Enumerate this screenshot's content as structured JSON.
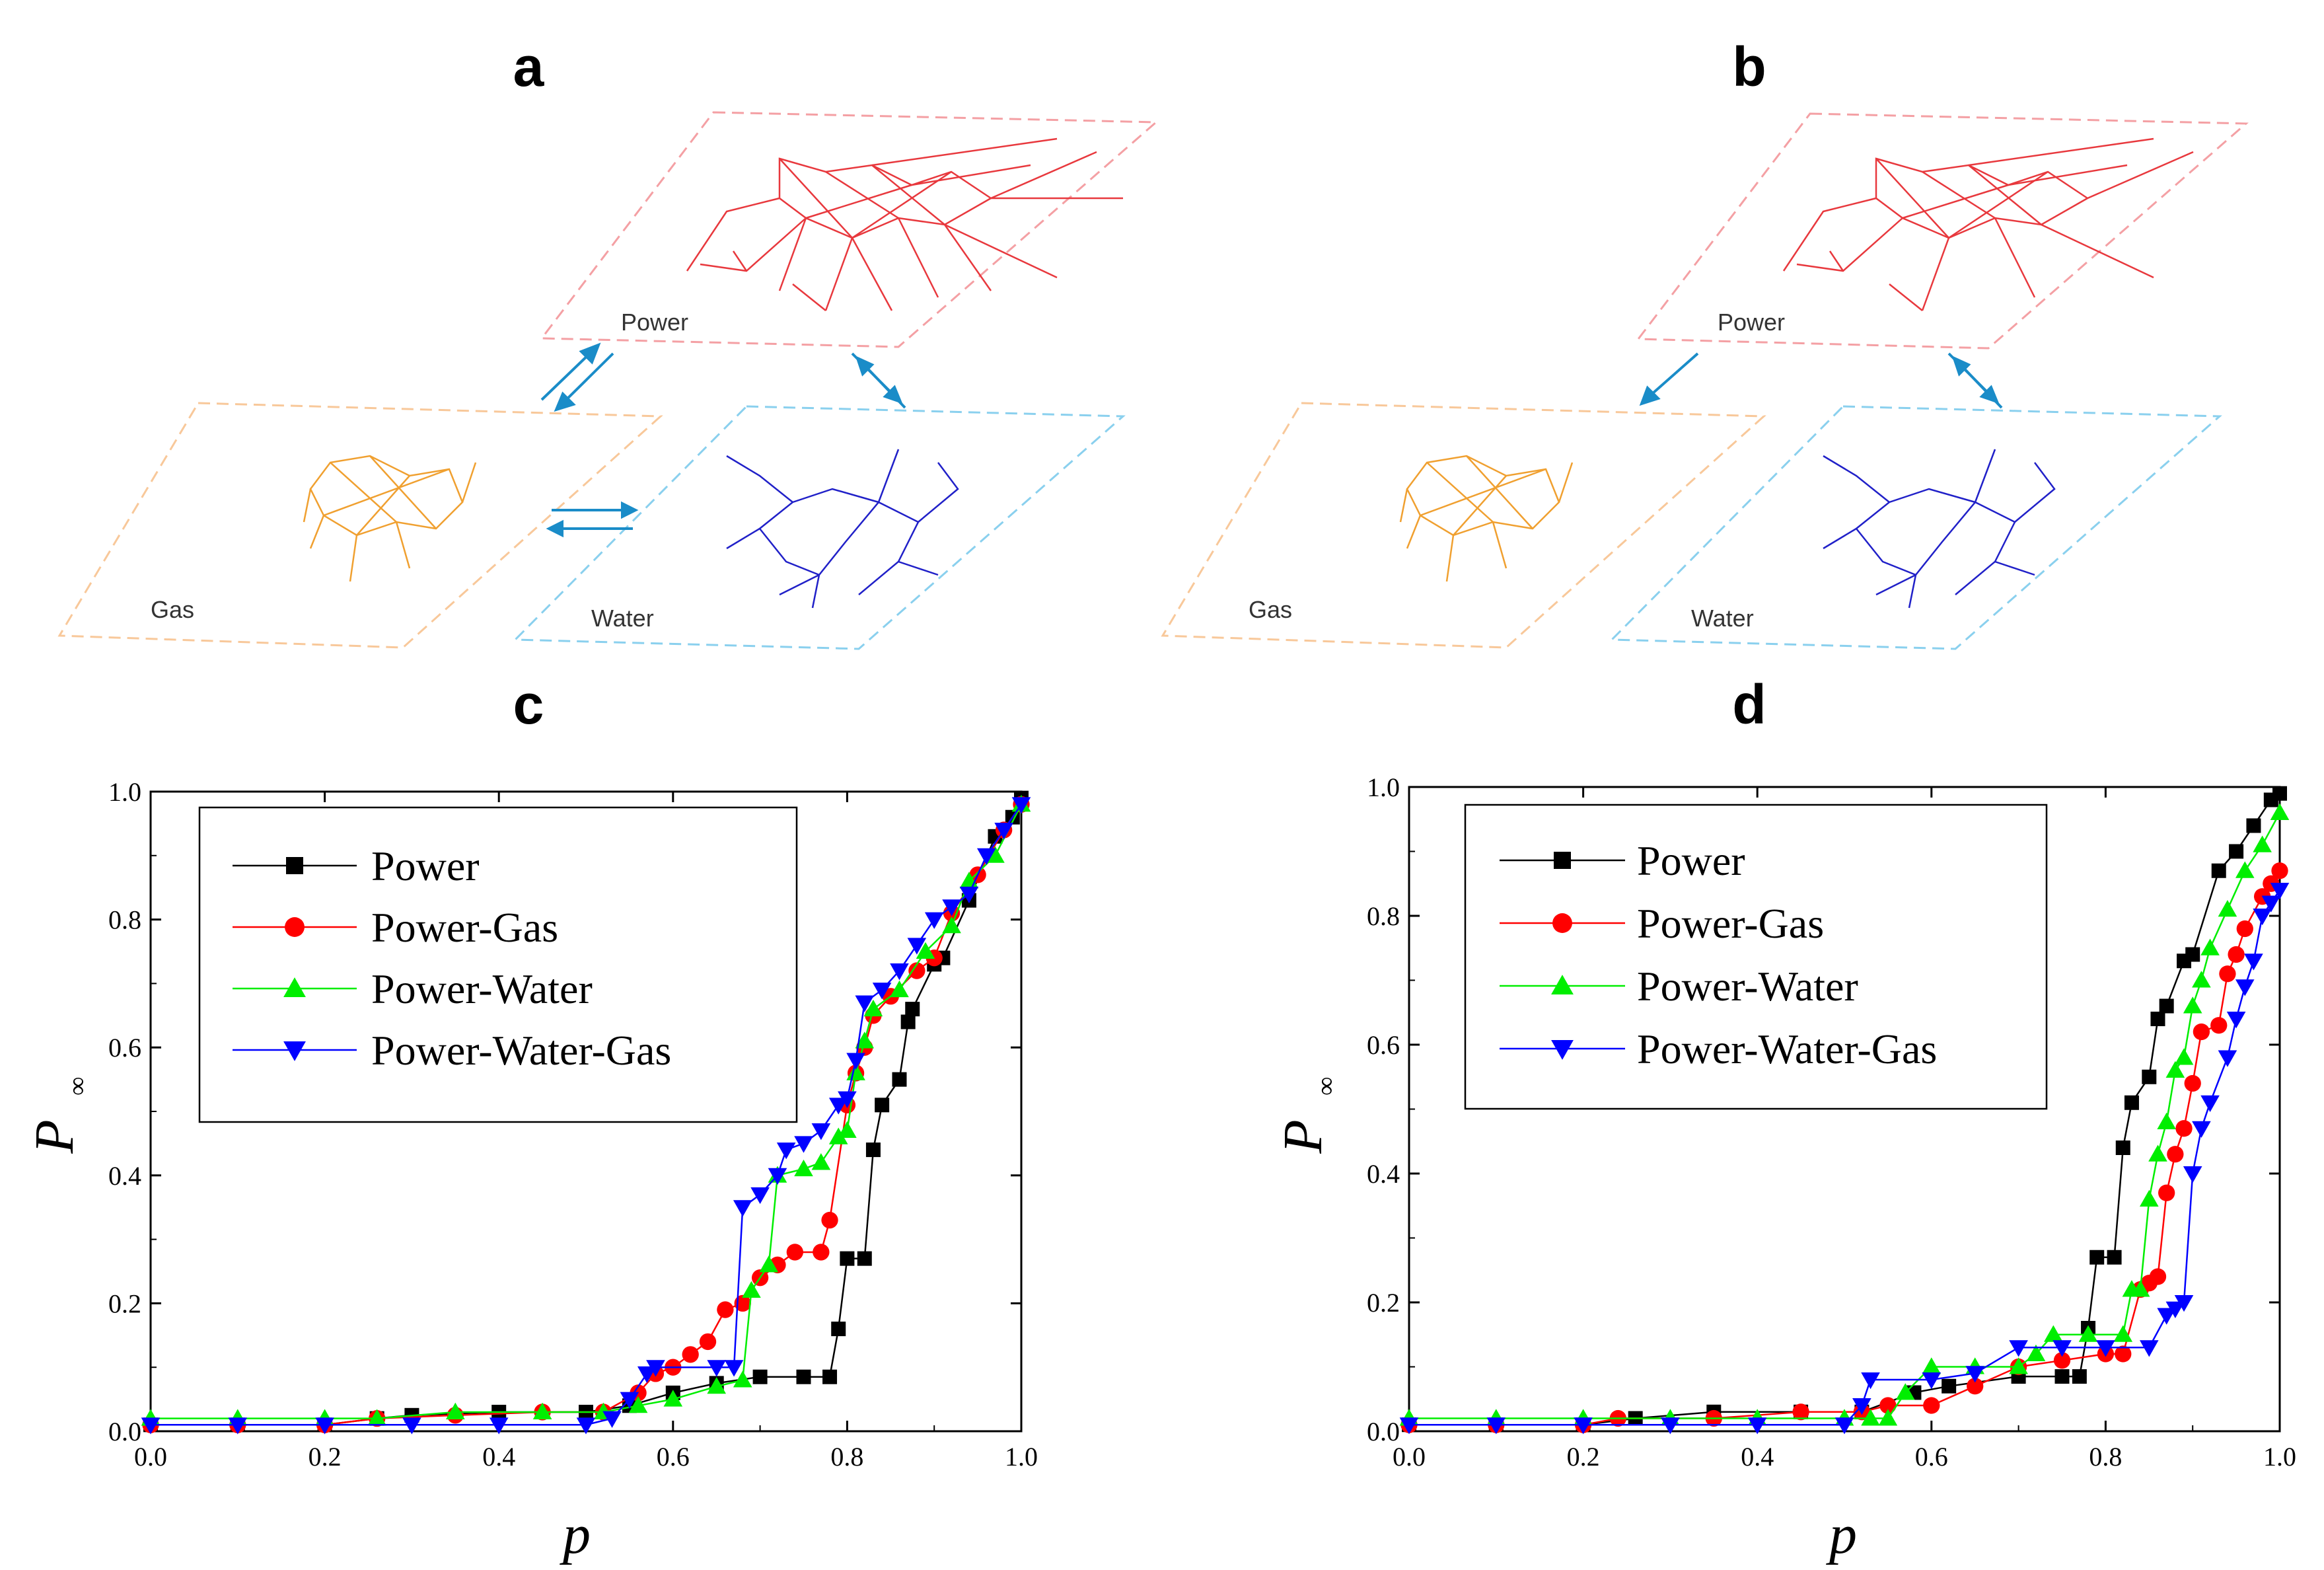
{
  "figure": {
    "panel_labels": [
      "a",
      "b",
      "c",
      "d"
    ],
    "network_layers": {
      "power": "Power",
      "gas": "Gas",
      "water": "Water"
    },
    "colors": {
      "power": "#e8383d",
      "gas": "#f0a030",
      "water": "#2020c8",
      "arrow": "#1a8cc8"
    }
  },
  "chart_data": [
    {
      "type": "line",
      "panel": "c",
      "title": "",
      "xlabel": "p",
      "ylabel": "P",
      "ylabel_sub": "∞",
      "xlim": [
        0,
        1
      ],
      "ylim": [
        0,
        1
      ],
      "xticks": [
        "0.0",
        "0.2",
        "0.4",
        "0.6",
        "0.8",
        "1.0"
      ],
      "yticks": [
        "0.0",
        "0.2",
        "0.4",
        "0.6",
        "0.8",
        "1.0"
      ],
      "legend": [
        "Power",
        "Power-Gas",
        "Power-Water",
        "Power-Water-Gas"
      ],
      "series": [
        {
          "name": "Power",
          "color": "#000000",
          "marker": "square",
          "points": [
            [
              0,
              0.01
            ],
            [
              0.1,
              0.01
            ],
            [
              0.2,
              0.01
            ],
            [
              0.26,
              0.02
            ],
            [
              0.3,
              0.025
            ],
            [
              0.4,
              0.03
            ],
            [
              0.5,
              0.03
            ],
            [
              0.55,
              0.04
            ],
            [
              0.6,
              0.06
            ],
            [
              0.65,
              0.075
            ],
            [
              0.7,
              0.085
            ],
            [
              0.75,
              0.085
            ],
            [
              0.78,
              0.085
            ],
            [
              0.79,
              0.16
            ],
            [
              0.8,
              0.27
            ],
            [
              0.82,
              0.27
            ],
            [
              0.83,
              0.44
            ],
            [
              0.84,
              0.51
            ],
            [
              0.86,
              0.55
            ],
            [
              0.87,
              0.64
            ],
            [
              0.875,
              0.66
            ],
            [
              0.9,
              0.73
            ],
            [
              0.91,
              0.74
            ],
            [
              0.94,
              0.83
            ],
            [
              0.97,
              0.93
            ],
            [
              0.99,
              0.96
            ],
            [
              1.0,
              0.99
            ]
          ]
        },
        {
          "name": "Power-Gas",
          "color": "#ff0000",
          "marker": "circle",
          "points": [
            [
              0,
              0.01
            ],
            [
              0.1,
              0.01
            ],
            [
              0.2,
              0.01
            ],
            [
              0.26,
              0.02
            ],
            [
              0.35,
              0.025
            ],
            [
              0.45,
              0.03
            ],
            [
              0.52,
              0.03
            ],
            [
              0.56,
              0.06
            ],
            [
              0.58,
              0.09
            ],
            [
              0.6,
              0.1
            ],
            [
              0.62,
              0.12
            ],
            [
              0.64,
              0.14
            ],
            [
              0.66,
              0.19
            ],
            [
              0.68,
              0.2
            ],
            [
              0.7,
              0.24
            ],
            [
              0.72,
              0.26
            ],
            [
              0.74,
              0.28
            ],
            [
              0.77,
              0.28
            ],
            [
              0.78,
              0.33
            ],
            [
              0.8,
              0.51
            ],
            [
              0.81,
              0.56
            ],
            [
              0.82,
              0.6
            ],
            [
              0.83,
              0.65
            ],
            [
              0.85,
              0.68
            ],
            [
              0.88,
              0.72
            ],
            [
              0.9,
              0.74
            ],
            [
              0.92,
              0.81
            ],
            [
              0.95,
              0.87
            ],
            [
              0.98,
              0.94
            ],
            [
              1.0,
              0.98
            ]
          ]
        },
        {
          "name": "Power-Water",
          "color": "#00ee00",
          "marker": "triangle-up",
          "points": [
            [
              0,
              0.02
            ],
            [
              0.1,
              0.02
            ],
            [
              0.2,
              0.02
            ],
            [
              0.26,
              0.02
            ],
            [
              0.35,
              0.03
            ],
            [
              0.45,
              0.03
            ],
            [
              0.52,
              0.03
            ],
            [
              0.56,
              0.04
            ],
            [
              0.6,
              0.05
            ],
            [
              0.65,
              0.07
            ],
            [
              0.68,
              0.08
            ],
            [
              0.69,
              0.22
            ],
            [
              0.71,
              0.26
            ],
            [
              0.72,
              0.4
            ],
            [
              0.75,
              0.41
            ],
            [
              0.77,
              0.42
            ],
            [
              0.79,
              0.46
            ],
            [
              0.8,
              0.47
            ],
            [
              0.81,
              0.56
            ],
            [
              0.82,
              0.61
            ],
            [
              0.83,
              0.66
            ],
            [
              0.86,
              0.69
            ],
            [
              0.89,
              0.75
            ],
            [
              0.92,
              0.79
            ],
            [
              0.94,
              0.86
            ],
            [
              0.97,
              0.9
            ],
            [
              1.0,
              0.98
            ]
          ]
        },
        {
          "name": "Power-Water-Gas",
          "color": "#0000ff",
          "marker": "triangle-down",
          "points": [
            [
              0,
              0.01
            ],
            [
              0.1,
              0.01
            ],
            [
              0.2,
              0.01
            ],
            [
              0.3,
              0.01
            ],
            [
              0.4,
              0.01
            ],
            [
              0.5,
              0.01
            ],
            [
              0.53,
              0.02
            ],
            [
              0.55,
              0.05
            ],
            [
              0.57,
              0.09
            ],
            [
              0.58,
              0.1
            ],
            [
              0.65,
              0.1
            ],
            [
              0.67,
              0.1
            ],
            [
              0.68,
              0.35
            ],
            [
              0.7,
              0.37
            ],
            [
              0.72,
              0.4
            ],
            [
              0.73,
              0.44
            ],
            [
              0.75,
              0.45
            ],
            [
              0.77,
              0.47
            ],
            [
              0.79,
              0.51
            ],
            [
              0.8,
              0.52
            ],
            [
              0.81,
              0.58
            ],
            [
              0.82,
              0.67
            ],
            [
              0.84,
              0.69
            ],
            [
              0.86,
              0.72
            ],
            [
              0.88,
              0.76
            ],
            [
              0.9,
              0.8
            ],
            [
              0.92,
              0.82
            ],
            [
              0.94,
              0.84
            ],
            [
              0.96,
              0.9
            ],
            [
              0.98,
              0.94
            ],
            [
              1.0,
              0.98
            ]
          ]
        }
      ]
    },
    {
      "type": "line",
      "panel": "d",
      "title": "",
      "xlabel": "p",
      "ylabel": "P",
      "ylabel_sub": "∞",
      "xlim": [
        0,
        1
      ],
      "ylim": [
        0,
        1
      ],
      "xticks": [
        "0.0",
        "0.2",
        "0.4",
        "0.6",
        "0.8",
        "1.0"
      ],
      "yticks": [
        "0.0",
        "0.2",
        "0.4",
        "0.6",
        "0.8",
        "1.0"
      ],
      "legend": [
        "Power",
        "Power-Gas",
        "Power-Water",
        "Power-Water-Gas"
      ],
      "series": [
        {
          "name": "Power",
          "color": "#000000",
          "marker": "square",
          "points": [
            [
              0,
              0.01
            ],
            [
              0.1,
              0.01
            ],
            [
              0.2,
              0.01
            ],
            [
              0.26,
              0.02
            ],
            [
              0.35,
              0.03
            ],
            [
              0.45,
              0.03
            ],
            [
              0.52,
              0.03
            ],
            [
              0.58,
              0.06
            ],
            [
              0.62,
              0.07
            ],
            [
              0.7,
              0.085
            ],
            [
              0.75,
              0.085
            ],
            [
              0.77,
              0.085
            ],
            [
              0.78,
              0.16
            ],
            [
              0.79,
              0.27
            ],
            [
              0.81,
              0.27
            ],
            [
              0.82,
              0.44
            ],
            [
              0.83,
              0.51
            ],
            [
              0.85,
              0.55
            ],
            [
              0.86,
              0.64
            ],
            [
              0.87,
              0.66
            ],
            [
              0.89,
              0.73
            ],
            [
              0.9,
              0.74
            ],
            [
              0.93,
              0.87
            ],
            [
              0.95,
              0.9
            ],
            [
              0.97,
              0.94
            ],
            [
              0.99,
              0.98
            ],
            [
              1.0,
              0.99
            ]
          ]
        },
        {
          "name": "Power-Gas",
          "color": "#ff0000",
          "marker": "circle",
          "points": [
            [
              0,
              0.01
            ],
            [
              0.1,
              0.01
            ],
            [
              0.2,
              0.01
            ],
            [
              0.24,
              0.02
            ],
            [
              0.35,
              0.02
            ],
            [
              0.45,
              0.03
            ],
            [
              0.52,
              0.03
            ],
            [
              0.55,
              0.04
            ],
            [
              0.6,
              0.04
            ],
            [
              0.65,
              0.07
            ],
            [
              0.7,
              0.1
            ],
            [
              0.75,
              0.11
            ],
            [
              0.8,
              0.12
            ],
            [
              0.82,
              0.12
            ],
            [
              0.84,
              0.22
            ],
            [
              0.85,
              0.23
            ],
            [
              0.86,
              0.24
            ],
            [
              0.87,
              0.37
            ],
            [
              0.88,
              0.43
            ],
            [
              0.89,
              0.47
            ],
            [
              0.9,
              0.54
            ],
            [
              0.91,
              0.62
            ],
            [
              0.93,
              0.63
            ],
            [
              0.94,
              0.71
            ],
            [
              0.95,
              0.74
            ],
            [
              0.96,
              0.78
            ],
            [
              0.98,
              0.83
            ],
            [
              0.99,
              0.85
            ],
            [
              1.0,
              0.87
            ]
          ]
        },
        {
          "name": "Power-Water",
          "color": "#00ee00",
          "marker": "triangle-up",
          "points": [
            [
              0,
              0.02
            ],
            [
              0.1,
              0.02
            ],
            [
              0.2,
              0.02
            ],
            [
              0.3,
              0.02
            ],
            [
              0.4,
              0.02
            ],
            [
              0.5,
              0.02
            ],
            [
              0.53,
              0.02
            ],
            [
              0.55,
              0.02
            ],
            [
              0.57,
              0.06
            ],
            [
              0.6,
              0.1
            ],
            [
              0.65,
              0.1
            ],
            [
              0.7,
              0.1
            ],
            [
              0.72,
              0.12
            ],
            [
              0.74,
              0.15
            ],
            [
              0.78,
              0.15
            ],
            [
              0.82,
              0.15
            ],
            [
              0.83,
              0.22
            ],
            [
              0.84,
              0.22
            ],
            [
              0.85,
              0.36
            ],
            [
              0.86,
              0.43
            ],
            [
              0.87,
              0.48
            ],
            [
              0.88,
              0.56
            ],
            [
              0.89,
              0.58
            ],
            [
              0.9,
              0.66
            ],
            [
              0.91,
              0.7
            ],
            [
              0.92,
              0.75
            ],
            [
              0.94,
              0.81
            ],
            [
              0.96,
              0.87
            ],
            [
              0.98,
              0.91
            ],
            [
              1.0,
              0.96
            ]
          ]
        },
        {
          "name": "Power-Water-Gas",
          "color": "#0000ff",
          "marker": "triangle-down",
          "points": [
            [
              0,
              0.01
            ],
            [
              0.1,
              0.01
            ],
            [
              0.2,
              0.01
            ],
            [
              0.3,
              0.01
            ],
            [
              0.4,
              0.01
            ],
            [
              0.5,
              0.01
            ],
            [
              0.52,
              0.04
            ],
            [
              0.53,
              0.08
            ],
            [
              0.6,
              0.08
            ],
            [
              0.65,
              0.09
            ],
            [
              0.7,
              0.13
            ],
            [
              0.75,
              0.13
            ],
            [
              0.8,
              0.13
            ],
            [
              0.85,
              0.13
            ],
            [
              0.87,
              0.18
            ],
            [
              0.88,
              0.19
            ],
            [
              0.89,
              0.2
            ],
            [
              0.9,
              0.4
            ],
            [
              0.91,
              0.47
            ],
            [
              0.92,
              0.51
            ],
            [
              0.94,
              0.58
            ],
            [
              0.95,
              0.64
            ],
            [
              0.96,
              0.69
            ],
            [
              0.97,
              0.73
            ],
            [
              0.98,
              0.8
            ],
            [
              0.99,
              0.82
            ],
            [
              1.0,
              0.84
            ]
          ]
        }
      ]
    }
  ]
}
